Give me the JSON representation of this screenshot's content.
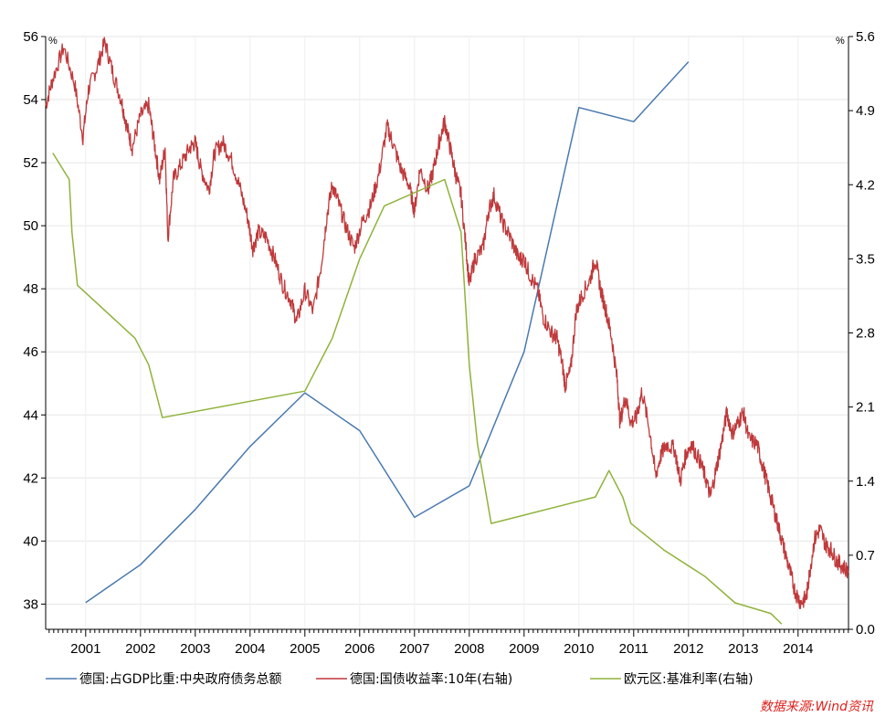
{
  "chart_data": {
    "type": "line",
    "left_axis": {
      "unit": "%",
      "ylim": [
        37.2,
        56
      ],
      "ticks": [
        "56",
        "54",
        "52",
        "50",
        "48",
        "46",
        "44",
        "42",
        "40",
        "38"
      ]
    },
    "right_axis": {
      "unit": "%",
      "ylim": [
        0.0,
        5.6
      ],
      "ticks": [
        "5.6",
        "4.9",
        "4.2",
        "3.5",
        "2.8",
        "2.1",
        "1.4",
        "0.7",
        "0.0"
      ]
    },
    "x_axis": {
      "xlim": [
        2000.27,
        2014.92
      ],
      "ticks": [
        "2001",
        "2002",
        "2003",
        "2004",
        "2005",
        "2006",
        "2007",
        "2008",
        "2009",
        "2010",
        "2011",
        "2012",
        "2013",
        "2014"
      ]
    },
    "series": [
      {
        "name": "德国:占GDP比重:中央政府债务总额",
        "axis": "left",
        "color": "#4a7ab0",
        "points": [
          [
            2001,
            38.05
          ],
          [
            2002,
            39.25
          ],
          [
            2003,
            41.0
          ],
          [
            2004,
            43.0
          ],
          [
            2005,
            44.7
          ],
          [
            2006,
            43.5
          ],
          [
            2007,
            40.75
          ],
          [
            2008,
            41.75
          ],
          [
            2009,
            46.0
          ],
          [
            2010,
            53.75
          ],
          [
            2011,
            53.3
          ],
          [
            2012,
            55.2
          ]
        ]
      },
      {
        "name": "德国:国债收益率:10年(右轴)",
        "axis": "right",
        "color": "#c0393b",
        "points": [
          [
            2000.27,
            4.95
          ],
          [
            2000.4,
            5.2
          ],
          [
            2000.6,
            5.5
          ],
          [
            2000.8,
            5.15
          ],
          [
            2000.95,
            4.65
          ],
          [
            2001.05,
            5.1
          ],
          [
            2001.2,
            5.3
          ],
          [
            2001.35,
            5.55
          ],
          [
            2001.5,
            5.25
          ],
          [
            2001.65,
            5.0
          ],
          [
            2001.75,
            4.75
          ],
          [
            2001.85,
            4.55
          ],
          [
            2002.0,
            4.85
          ],
          [
            2002.15,
            4.95
          ],
          [
            2002.25,
            4.6
          ],
          [
            2002.35,
            4.25
          ],
          [
            2002.45,
            4.55
          ],
          [
            2002.5,
            3.7
          ],
          [
            2002.6,
            4.25
          ],
          [
            2002.75,
            4.4
          ],
          [
            2002.9,
            4.55
          ],
          [
            2003.0,
            4.6
          ],
          [
            2003.1,
            4.35
          ],
          [
            2003.25,
            4.15
          ],
          [
            2003.35,
            4.5
          ],
          [
            2003.5,
            4.6
          ],
          [
            2003.65,
            4.45
          ],
          [
            2003.8,
            4.2
          ],
          [
            2003.95,
            3.9
          ],
          [
            2004.05,
            3.6
          ],
          [
            2004.15,
            3.75
          ],
          [
            2004.3,
            3.7
          ],
          [
            2004.45,
            3.5
          ],
          [
            2004.6,
            3.25
          ],
          [
            2004.75,
            3.1
          ],
          [
            2004.85,
            2.9
          ],
          [
            2005.0,
            3.2
          ],
          [
            2005.15,
            3.0
          ],
          [
            2005.3,
            3.45
          ],
          [
            2005.4,
            3.9
          ],
          [
            2005.5,
            4.2
          ],
          [
            2005.6,
            4.05
          ],
          [
            2005.75,
            3.8
          ],
          [
            2005.9,
            3.6
          ],
          [
            2006.05,
            3.85
          ],
          [
            2006.2,
            4.0
          ],
          [
            2006.35,
            4.3
          ],
          [
            2006.5,
            4.75
          ],
          [
            2006.6,
            4.6
          ],
          [
            2006.75,
            4.35
          ],
          [
            2006.9,
            4.2
          ],
          [
            2007.0,
            3.95
          ],
          [
            2007.1,
            4.35
          ],
          [
            2007.25,
            4.15
          ],
          [
            2007.35,
            4.35
          ],
          [
            2007.45,
            4.6
          ],
          [
            2007.55,
            4.8
          ],
          [
            2007.65,
            4.55
          ],
          [
            2007.75,
            4.3
          ],
          [
            2007.85,
            4.1
          ],
          [
            2007.95,
            3.55
          ],
          [
            2008.0,
            3.25
          ],
          [
            2008.1,
            3.5
          ],
          [
            2008.25,
            3.6
          ],
          [
            2008.35,
            3.95
          ],
          [
            2008.45,
            4.1
          ],
          [
            2008.6,
            3.85
          ],
          [
            2008.75,
            3.7
          ],
          [
            2008.9,
            3.5
          ],
          [
            2009.0,
            3.5
          ],
          [
            2009.1,
            3.35
          ],
          [
            2009.25,
            3.2
          ],
          [
            2009.35,
            2.95
          ],
          [
            2009.5,
            2.8
          ],
          [
            2009.6,
            2.75
          ],
          [
            2009.7,
            2.5
          ],
          [
            2009.75,
            2.3
          ],
          [
            2009.85,
            2.45
          ],
          [
            2009.95,
            3.0
          ],
          [
            2010.05,
            3.15
          ],
          [
            2010.2,
            3.3
          ],
          [
            2010.3,
            3.5
          ],
          [
            2010.4,
            3.2
          ],
          [
            2010.5,
            3.0
          ],
          [
            2010.6,
            2.75
          ],
          [
            2010.7,
            2.35
          ],
          [
            2010.75,
            1.95
          ],
          [
            2010.85,
            2.2
          ],
          [
            2010.95,
            1.95
          ],
          [
            2011.05,
            2.0
          ],
          [
            2011.15,
            2.25
          ],
          [
            2011.3,
            1.85
          ],
          [
            2011.4,
            1.45
          ],
          [
            2011.5,
            1.65
          ],
          [
            2011.6,
            1.75
          ],
          [
            2011.75,
            1.7
          ],
          [
            2011.85,
            1.4
          ],
          [
            2011.95,
            1.65
          ],
          [
            2012.05,
            1.75
          ],
          [
            2012.2,
            1.6
          ],
          [
            2012.3,
            1.45
          ],
          [
            2012.4,
            1.25
          ],
          [
            2012.5,
            1.5
          ],
          [
            2012.6,
            1.75
          ],
          [
            2012.7,
            2.05
          ],
          [
            2012.8,
            1.85
          ],
          [
            2012.9,
            1.95
          ],
          [
            2013.0,
            2.05
          ],
          [
            2013.1,
            1.8
          ],
          [
            2013.25,
            1.75
          ],
          [
            2013.35,
            1.55
          ],
          [
            2013.45,
            1.35
          ],
          [
            2013.55,
            1.15
          ],
          [
            2013.65,
            0.95
          ],
          [
            2013.75,
            0.75
          ],
          [
            2013.85,
            0.55
          ],
          [
            2013.95,
            0.35
          ],
          [
            2014.05,
            0.25
          ],
          [
            2014.15,
            0.3
          ],
          [
            2014.2,
            0.5
          ],
          [
            2014.3,
            0.85
          ],
          [
            2014.4,
            0.95
          ],
          [
            2014.5,
            0.8
          ],
          [
            2014.6,
            0.75
          ],
          [
            2014.7,
            0.65
          ],
          [
            2014.8,
            0.6
          ],
          [
            2014.92,
            0.55
          ]
        ]
      },
      {
        "name": "欧元区:基准利率(右轴)",
        "axis": "right",
        "color": "#8fb33a",
        "points": [
          [
            2000.4,
            4.5
          ],
          [
            2000.7,
            4.25
          ],
          [
            2000.75,
            3.75
          ],
          [
            2000.85,
            3.25
          ],
          [
            2001.9,
            2.75
          ],
          [
            2002.15,
            2.5
          ],
          [
            2002.4,
            2.0
          ],
          [
            2005.0,
            2.25
          ],
          [
            2005.5,
            2.75
          ],
          [
            2006.0,
            3.5
          ],
          [
            2006.45,
            4.0
          ],
          [
            2007.55,
            4.25
          ],
          [
            2007.85,
            3.75
          ],
          [
            2008.0,
            2.5
          ],
          [
            2008.15,
            1.75
          ],
          [
            2008.4,
            1.0
          ],
          [
            2010.3,
            1.25
          ],
          [
            2010.55,
            1.5
          ],
          [
            2010.8,
            1.25
          ],
          [
            2010.95,
            1.0
          ],
          [
            2011.55,
            0.75
          ],
          [
            2012.3,
            0.5
          ],
          [
            2012.85,
            0.25
          ],
          [
            2013.5,
            0.15
          ],
          [
            2013.7,
            0.05
          ]
        ]
      }
    ],
    "source": "数据来源:Wind资讯"
  }
}
